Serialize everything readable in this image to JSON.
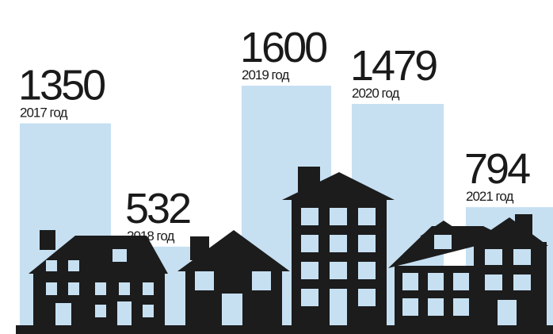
{
  "chart_data": {
    "type": "bar",
    "categories": [
      "2017 год",
      "2018 год",
      "2019 год",
      "2020 год",
      "2021 год"
    ],
    "values": [
      1350,
      532,
      1600,
      1479,
      794
    ],
    "color": "#c6e0f2"
  }
}
